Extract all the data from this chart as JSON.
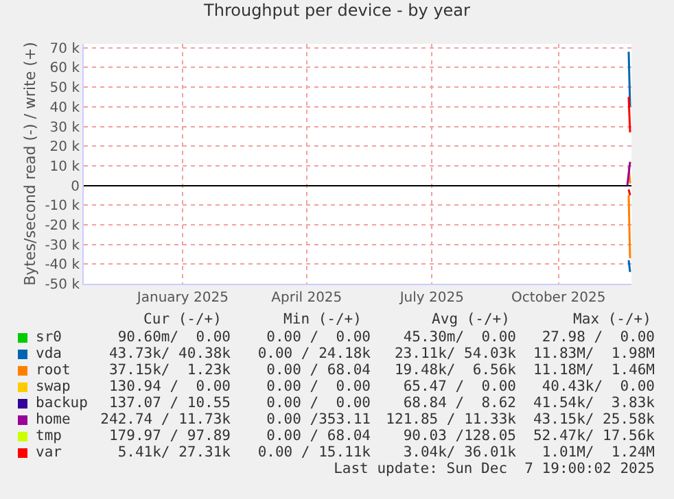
{
  "chart_data": {
    "type": "line",
    "title": "Throughput per device - by year",
    "ylabel": "Bytes/second read (-) / write (+)",
    "xlim": [
      "2024-11-05",
      "2025-12-08"
    ],
    "xticks": [
      {
        "value": "2025-01-16",
        "label": "January 2025"
      },
      {
        "value": "2025-04-16",
        "label": "April 2025"
      },
      {
        "value": "2025-07-16",
        "label": "July 2025"
      },
      {
        "value": "2025-10-16",
        "label": "October 2025"
      }
    ],
    "ylim": [
      -50000,
      72000
    ],
    "yticks": [
      {
        "value": -50000,
        "label": "-50 k"
      },
      {
        "value": -40000,
        "label": "-40 k"
      },
      {
        "value": -30000,
        "label": "-30 k"
      },
      {
        "value": -20000,
        "label": "-20 k"
      },
      {
        "value": -10000,
        "label": "-10 k"
      },
      0,
      {
        "value": 10000,
        "label": "10 k"
      },
      {
        "value": 20000,
        "label": "20 k"
      },
      {
        "value": 30000,
        "label": "30 k"
      },
      {
        "value": 40000,
        "label": "40 k"
      },
      {
        "value": 50000,
        "label": "50 k"
      },
      {
        "value": 60000,
        "label": "60 k"
      },
      {
        "value": 70000,
        "label": "70 k"
      }
    ],
    "grid": true,
    "legend": "bottom",
    "series": [
      {
        "name": "sr0",
        "color": "#00cc00",
        "values": [
          null,
          null
        ]
      },
      {
        "name": "vda",
        "color": "#0066b3",
        "x": [
          "2025-12-06",
          "2025-12-07"
        ],
        "values": [
          68000,
          40000
        ]
      },
      {
        "name": "root",
        "color": "#ff8000",
        "x": [
          "2025-12-06",
          "2025-12-07"
        ],
        "values": [
          10000,
          1000
        ]
      },
      {
        "name": "swap",
        "color": "#ffcc00",
        "values": [
          null,
          null
        ]
      },
      {
        "name": "backup",
        "color": "#330099",
        "values": [
          null,
          null
        ]
      },
      {
        "name": "home",
        "color": "#990099",
        "x": [
          "2025-12-05",
          "2025-12-07"
        ],
        "values": [
          0,
          12000
        ]
      },
      {
        "name": "tmp",
        "color": "#ccff00",
        "values": [
          null,
          null
        ]
      },
      {
        "name": "var",
        "color": "#ff0000",
        "x": [
          "2025-12-06",
          "2025-12-07"
        ],
        "values": [
          45000,
          27000
        ]
      },
      {
        "color": "#0066b3",
        "x": [
          "2025-12-06",
          "2025-12-07"
        ],
        "values": [
          -38000,
          -44000
        ]
      },
      {
        "color": "#ff8000",
        "x": [
          "2025-12-06",
          "2025-12-07"
        ],
        "values": [
          -5000,
          -37000
        ]
      },
      {
        "color": "#ff0000",
        "x": [
          "2025-12-06",
          "2025-12-07"
        ],
        "values": [
          -2000,
          -5000
        ]
      }
    ],
    "annotations": [
      "Cur (-/+)",
      "Min (-/+)",
      "Avg (-/+)",
      "Max (-/+)",
      "90.60m/  0.00",
      "0.00 /  0.00",
      "45.30m/  0.00",
      "27.98 /  0.00",
      "43.73k/ 40.38k",
      "0.00 / 24.18k",
      "23.11k/ 54.03k",
      "11.83M/  1.98M",
      "37.15k/  1.23k",
      "0.00 / 68.04",
      "19.48k/  6.56k",
      "11.18M/  1.46M",
      "130.94 /  0.00",
      "0.00 /  0.00",
      "65.47 /  0.00",
      "40.43k/  0.00",
      "137.07 / 10.55",
      "0.00 /  0.00",
      "68.84 /  8.62",
      "41.54k/  3.83k",
      "242.74 / 11.73k",
      "0.00 /353.11",
      "121.85 / 11.33k",
      "43.15k/ 25.58k",
      "179.97 / 97.89",
      "0.00 / 68.04",
      "90.03 /128.05",
      "52.47k/ 17.56k",
      "5.41k/ 27.31k",
      "0.00 / 15.11k",
      "3.04k/ 36.01k",
      "1.01M/  1.24M",
      "Last update: Sun Dec  7 19:00:02 2025"
    ]
  }
}
